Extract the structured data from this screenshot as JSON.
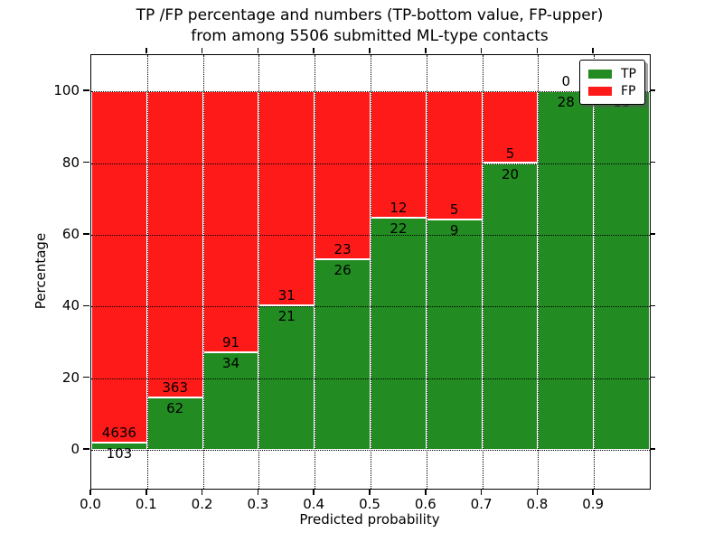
{
  "figure": {
    "title_line1": "TP /FP percentage and numbers (TP-bottom value, FP-upper)",
    "title_line2": "from among 5506 submitted ML-type contacts",
    "background": "#ffffff"
  },
  "axes": {
    "xlabel": "Predicted probability",
    "ylabel": "Percentage",
    "xticks": [
      "0.0",
      "0.1",
      "0.2",
      "0.3",
      "0.4",
      "0.5",
      "0.6",
      "0.7",
      "0.8",
      "0.9"
    ],
    "xtick_positions": [
      0.0,
      0.1,
      0.2,
      0.3,
      0.4,
      0.5,
      0.6,
      0.7,
      0.8,
      0.9
    ],
    "yticks": [
      "0",
      "20",
      "40",
      "60",
      "80",
      "100"
    ],
    "ytick_values": [
      0,
      20,
      40,
      60,
      80,
      100
    ],
    "xlim": [
      0.0,
      1.0
    ],
    "ylim": [
      -10.8,
      110.1
    ],
    "grid": {
      "linestyle": "dotted",
      "color": "#000000"
    }
  },
  "legend": {
    "position": "upper right",
    "items": [
      {
        "label": "TP",
        "color": "#228b22"
      },
      {
        "label": "FP",
        "color": "#ff1a1a"
      }
    ]
  },
  "chart_data": {
    "type": "bar",
    "stacked": true,
    "normalized_to_percent": true,
    "title": "TP /FP percentage and numbers (TP-bottom value, FP-upper) from among 5506 submitted ML-type contacts",
    "xlabel": "Predicted probability",
    "ylabel": "Percentage",
    "total_contacts": 5506,
    "bin_edges": [
      0.0,
      0.1,
      0.2,
      0.3,
      0.4,
      0.5,
      0.6,
      0.7,
      0.8,
      0.9,
      1.0
    ],
    "categories": [
      "0.0-0.1",
      "0.1-0.2",
      "0.2-0.3",
      "0.3-0.4",
      "0.4-0.5",
      "0.5-0.6",
      "0.6-0.7",
      "0.7-0.8",
      "0.8-0.9",
      "0.9-1.0"
    ],
    "series": [
      {
        "name": "TP",
        "color": "#228b22",
        "counts": [
          103,
          62,
          34,
          21,
          26,
          22,
          9,
          20,
          28,
          15
        ],
        "percent": [
          2.17,
          14.59,
          27.2,
          40.38,
          53.06,
          64.71,
          64.29,
          80.0,
          100.0,
          100.0
        ]
      },
      {
        "name": "FP",
        "color": "#ff1a1a",
        "counts": [
          4636,
          363,
          91,
          31,
          23,
          12,
          5,
          5,
          0,
          0
        ],
        "percent": [
          97.83,
          85.41,
          72.8,
          59.62,
          46.94,
          35.29,
          35.71,
          20.0,
          0.0,
          0.0
        ]
      }
    ],
    "fp_label_visible": [
      true,
      true,
      true,
      true,
      true,
      true,
      true,
      true,
      true,
      false
    ],
    "ylim": [
      -10.8,
      110.1
    ],
    "grid": "dotted",
    "legend_position": "upper right",
    "note": "Last bin FP count label is hidden behind the legend box"
  }
}
